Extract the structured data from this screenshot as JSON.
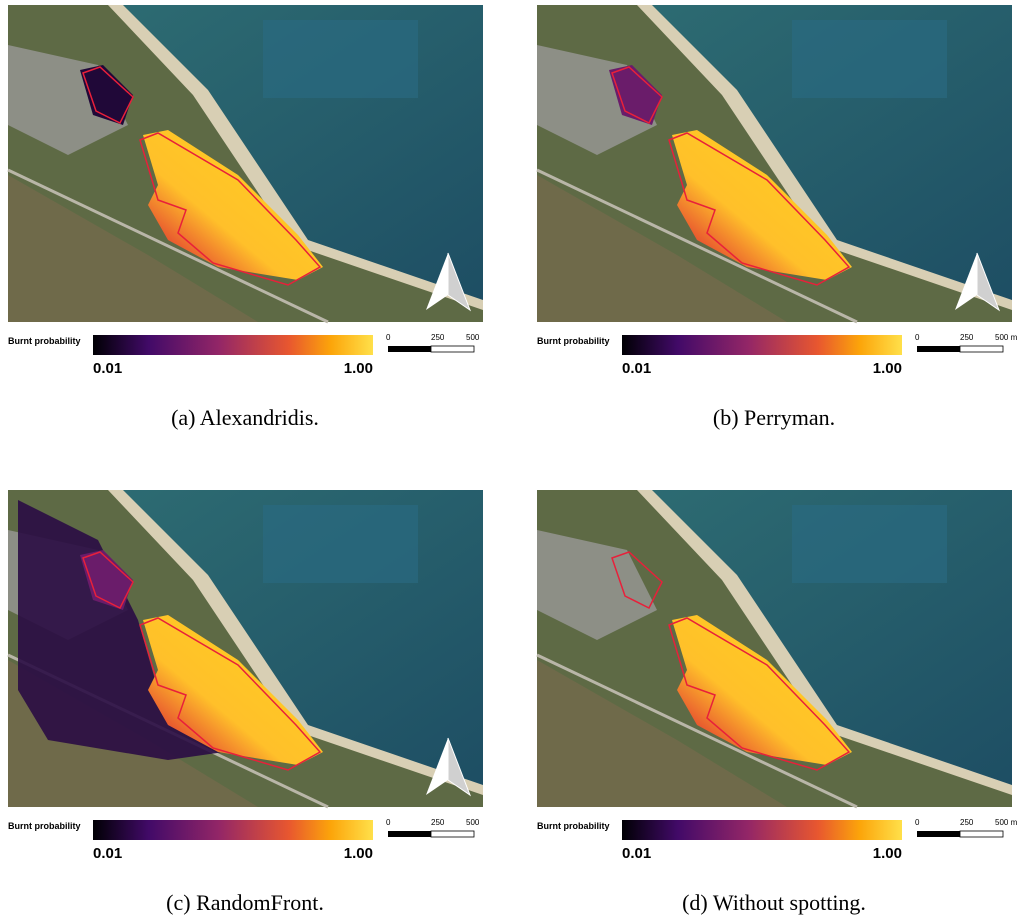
{
  "panels": [
    {
      "legend_title": "Burnt probability",
      "min_label": "0.01",
      "max_label": "1.00",
      "scale_labels": [
        "0",
        "250",
        "500"
      ],
      "caption": "(a) Alexandridis."
    },
    {
      "legend_title": "Burnt probability",
      "min_label": "0.01",
      "max_label": "1.00",
      "scale_labels": [
        "0",
        "250",
        "500 m"
      ],
      "caption": "(b) Perryman."
    },
    {
      "legend_title": "Burnt probability",
      "min_label": "0.01",
      "max_label": "1.00",
      "scale_labels": [
        "0",
        "250",
        "500"
      ],
      "caption": "(c) RandomFront."
    },
    {
      "legend_title": "Burnt probability",
      "min_label": "0.01",
      "max_label": "1.00",
      "scale_labels": [
        "0",
        "250",
        "500 m"
      ],
      "caption": "(d) Without spotting."
    }
  ]
}
